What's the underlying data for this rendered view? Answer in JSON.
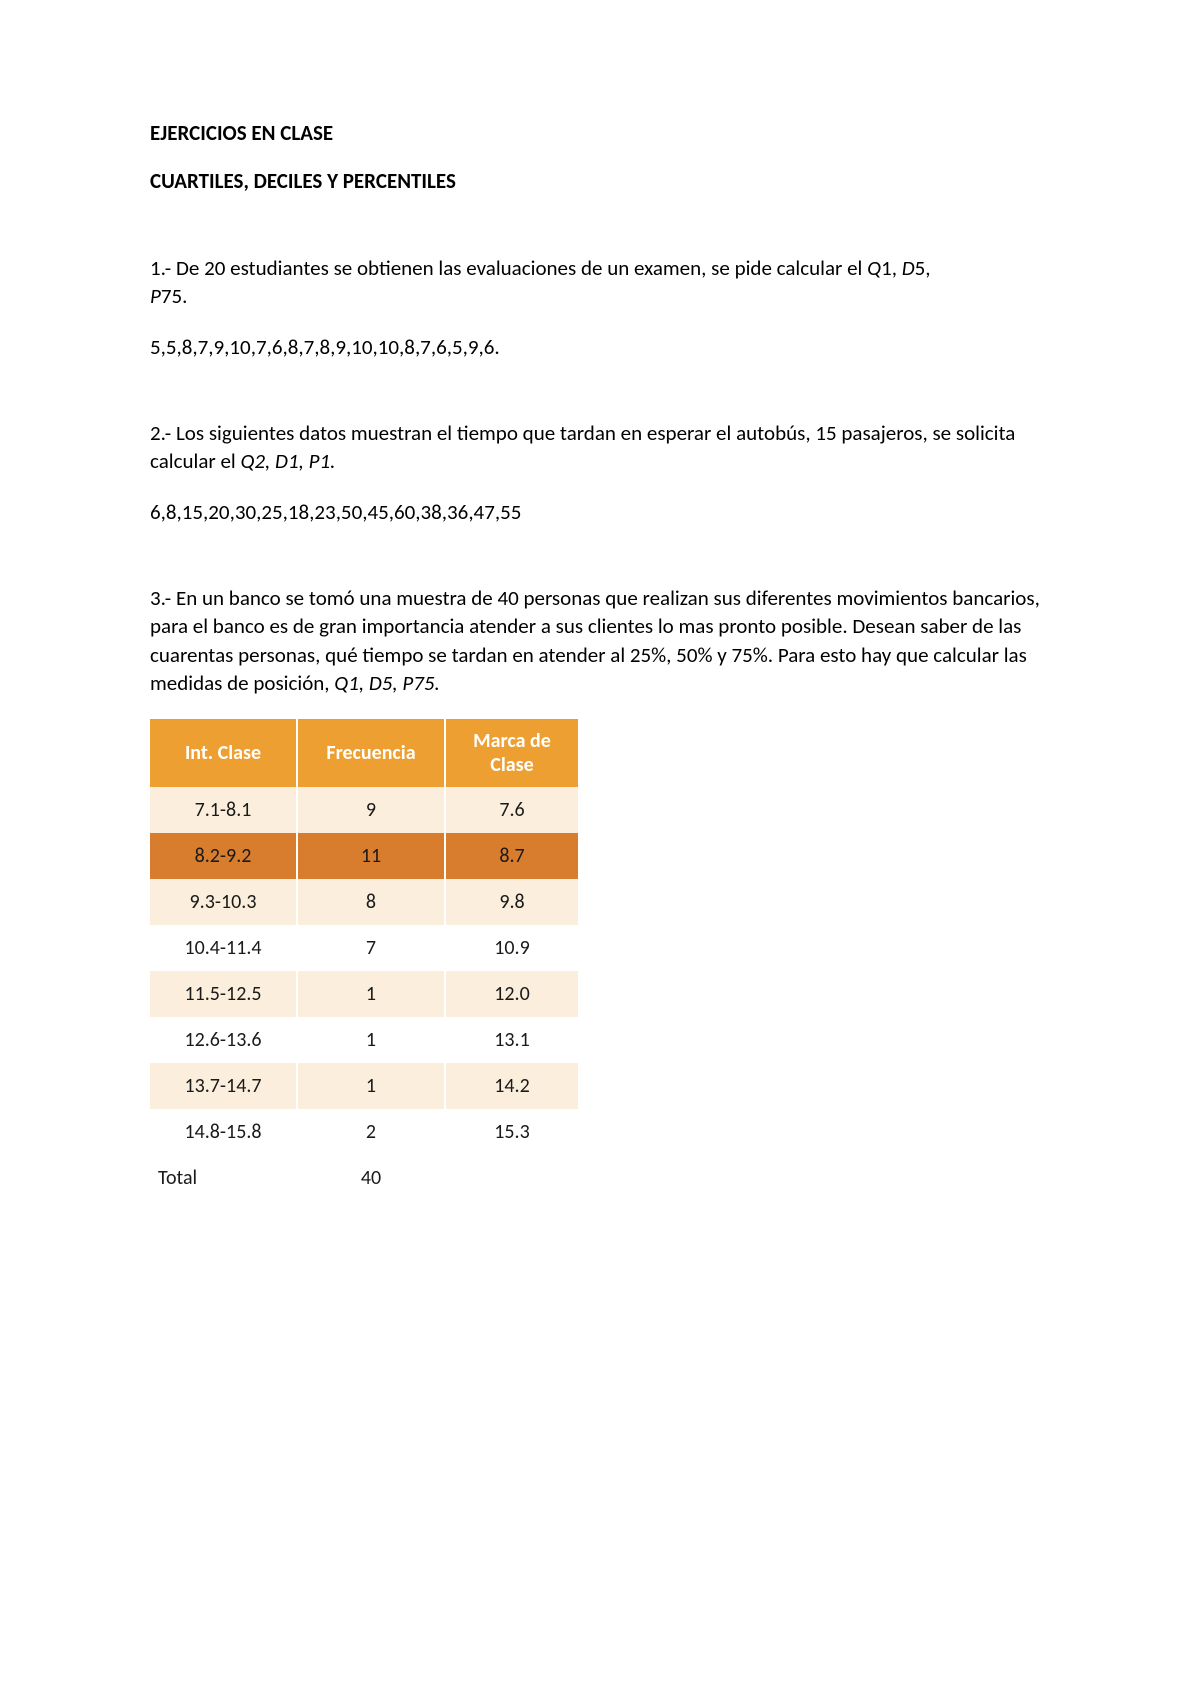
{
  "titles": {
    "main": "EJERCICIOS EN CLASE",
    "sub": "CUARTILES, DECILES Y PERCENTILES"
  },
  "q1": {
    "text_a": "1.- De 20 estudiantes se obtienen las evaluaciones de un examen, se pide calcular el ",
    "q": "Q",
    "q_n": "1, ",
    "d": "D",
    "d_n": "5, ",
    "p": "P",
    "p_n": "75.",
    "data": "5,5,8,7,9,10,7,6,8,7,8,9,10,10,8,7,6,5,9,6."
  },
  "q2": {
    "text_a": "2.- Los siguientes datos muestran el tiempo que tardan en esperar el autobús, 15 pasajeros, se solicita calcular el ",
    "meas": "Q2, D1, P1.",
    "data": "6,8,15,20,30,25,18,23,50,45,60,38,36,47,55"
  },
  "q3": {
    "text_a": "3.- En un banco se tomó una muestra de 40 personas que realizan sus diferentes movimientos bancarios, para el banco es de gran importancia atender a sus clientes lo mas pronto posible. Desean saber de las cuarentas personas, qué tiempo se tardan en atender al 25%, 50% y 75%. Para esto hay que calcular las medidas de posición, ",
    "meas": "Q1, D5, P75."
  },
  "table": {
    "headers": [
      "Int. Clase",
      "Frecuencia",
      "Marca de Clase"
    ],
    "rows": [
      {
        "style": "row-light",
        "cells": [
          "7.1-8.1",
          "9",
          "7.6"
        ]
      },
      {
        "style": "row-highlight",
        "cells": [
          "8.2-9.2",
          "11",
          "8.7"
        ]
      },
      {
        "style": "row-light",
        "cells": [
          "9.3-10.3",
          "8",
          "9.8"
        ]
      },
      {
        "style": "row-white",
        "cells": [
          "10.4-11.4",
          "7",
          "10.9"
        ]
      },
      {
        "style": "row-light",
        "cells": [
          "11.5-12.5",
          "1",
          "12.0"
        ]
      },
      {
        "style": "row-white",
        "cells": [
          "12.6-13.6",
          "1",
          "13.1"
        ]
      },
      {
        "style": "row-light",
        "cells": [
          "13.7-14.7",
          "1",
          "14.2"
        ]
      },
      {
        "style": "row-white",
        "cells": [
          "14.8-15.8",
          "2",
          "15.3"
        ]
      }
    ],
    "total_label": "Total",
    "total_value": "40"
  }
}
